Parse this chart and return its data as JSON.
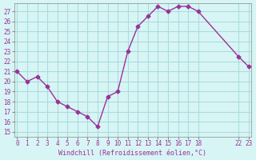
{
  "x": [
    0,
    1,
    2,
    3,
    4,
    5,
    6,
    7,
    8,
    9,
    10,
    11,
    12,
    13,
    14,
    15,
    16,
    17,
    18,
    22,
    23
  ],
  "y": [
    21.0,
    20.0,
    20.5,
    19.5,
    18.0,
    17.5,
    17.0,
    16.5,
    15.5,
    18.5,
    19.0,
    23.0,
    25.5,
    26.5,
    27.5,
    27.0,
    27.5,
    27.5,
    27.0,
    22.5,
    21.5
  ],
  "line_color": "#993399",
  "marker_color": "#993399",
  "bg_color": "#d8f5f5",
  "grid_color": "#aadddd",
  "axis_label_color": "#993399",
  "xlabel": "Windchill (Refroidissement éolien,°C)",
  "xtick_positions": [
    0,
    1,
    2,
    3,
    4,
    5,
    6,
    7,
    8,
    9,
    10,
    11,
    12,
    13,
    14,
    15,
    16,
    17,
    18,
    22,
    23
  ],
  "xtick_labels": [
    "0",
    "1",
    "2",
    "3",
    "4",
    "5",
    "6",
    "7",
    "8",
    "9",
    "10",
    "11",
    "12",
    "13",
    "14",
    "15",
    "16",
    "17",
    "18",
    "22",
    "23"
  ],
  "yticks": [
    15,
    16,
    17,
    18,
    19,
    20,
    21,
    22,
    23,
    24,
    25,
    26,
    27
  ],
  "ylim": [
    14.5,
    27.8
  ],
  "xlim": [
    -0.3,
    23.3
  ]
}
